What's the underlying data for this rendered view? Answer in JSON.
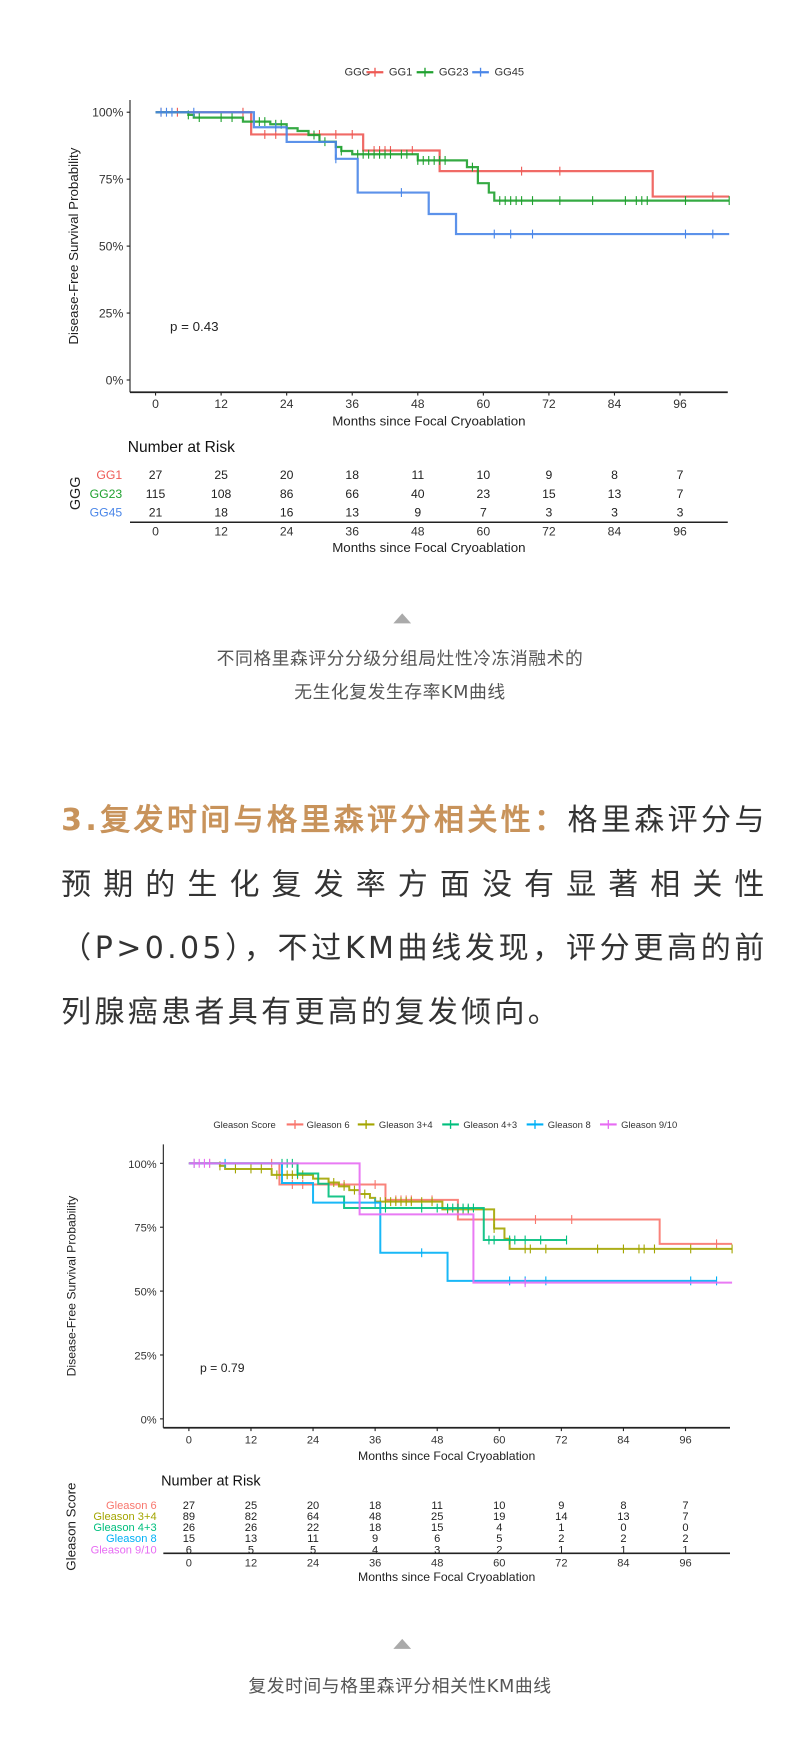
{
  "caption1": [
    "不同格里森评分分级分组局灶性冷冻消融术的",
    "无生化复发生存率KM曲线"
  ],
  "paragraph": {
    "highlight": "3.复发时间与格里森评分相关性：",
    "text": "格里森评分与预期的生化复发率方面没有显著相关性（P>0.05），不过KM曲线发现，评分更高的前列腺癌患者具有更高的复发倾向。"
  },
  "caption2": "复发时间与格里森评分相关性KM曲线",
  "chart_data": [
    {
      "type": "line",
      "step": true,
      "legend_title": "GGG",
      "legend_position": "top",
      "ylabel": "Disease-Free Survival Probability",
      "xlabel": "Months since Focal Cryoablation",
      "yticks": [
        "0%",
        "25%",
        "50%",
        "75%",
        "100%"
      ],
      "ytick_values": [
        0,
        0.25,
        0.5,
        0.75,
        1
      ],
      "xticks": [
        0,
        12,
        24,
        36,
        48,
        60,
        72,
        84,
        96
      ],
      "xlim": [
        0,
        105
      ],
      "ylim": [
        0,
        1
      ],
      "grid": false,
      "annotation": "p = 0.43",
      "series": [
        {
          "name": "GG1",
          "color": "#ee5a55",
          "steps": [
            [
              0,
              1
            ],
            [
              17.5,
              0.917
            ],
            [
              38,
              0.857
            ],
            [
              52,
              0.78
            ],
            [
              91,
              0.685
            ]
          ],
          "censor": [
            1,
            4,
            16,
            20,
            22,
            30,
            33,
            36,
            40,
            41,
            42,
            43,
            47,
            67,
            74,
            102
          ],
          "end": 105
        },
        {
          "name": "GG23",
          "color": "#1fa12f",
          "steps": [
            [
              0,
              1
            ],
            [
              6,
              0.99
            ],
            [
              7,
              0.98
            ],
            [
              16,
              0.965
            ],
            [
              21,
              0.955
            ],
            [
              24,
              0.94
            ],
            [
              26,
              0.93
            ],
            [
              28,
              0.915
            ],
            [
              30,
              0.89
            ],
            [
              33,
              0.87
            ],
            [
              34,
              0.855
            ],
            [
              36,
              0.843
            ],
            [
              48,
              0.82
            ],
            [
              57,
              0.795
            ],
            [
              59,
              0.735
            ],
            [
              61,
              0.7
            ],
            [
              62,
              0.67
            ]
          ],
          "censor": [
            6,
            8,
            12,
            14,
            19,
            20,
            22,
            23,
            29,
            31,
            34,
            37,
            38,
            39,
            40,
            41,
            42,
            43,
            45,
            46,
            48,
            49,
            50,
            51,
            52,
            53,
            58,
            63,
            64,
            65,
            66,
            67,
            69,
            74,
            80,
            86,
            88,
            89,
            90,
            97,
            105
          ],
          "end": 105
        },
        {
          "name": "GG45",
          "color": "#4a86e8",
          "steps": [
            [
              0,
              1
            ],
            [
              18,
              0.944
            ],
            [
              24,
              0.889
            ],
            [
              33,
              0.826
            ],
            [
              37,
              0.7
            ],
            [
              50,
              0.62
            ],
            [
              55,
              0.545
            ]
          ],
          "censor": [
            1,
            2,
            3,
            7,
            22,
            33,
            45,
            62,
            65,
            69,
            97,
            102
          ],
          "end": 105
        }
      ],
      "risk_table": {
        "title": "Number at Risk",
        "ylabel": "GGG",
        "xlabel": "Months since Focal Cryoablation",
        "rows": [
          {
            "label": "GG1",
            "color": "#ee5a55",
            "values": [
              27,
              25,
              20,
              18,
              11,
              10,
              9,
              8,
              7
            ]
          },
          {
            "label": "GG23",
            "color": "#1fa12f",
            "values": [
              115,
              108,
              86,
              66,
              40,
              23,
              15,
              13,
              7
            ]
          },
          {
            "label": "GG45",
            "color": "#4a86e8",
            "values": [
              21,
              18,
              16,
              13,
              9,
              7,
              3,
              3,
              3
            ]
          }
        ]
      }
    },
    {
      "type": "line",
      "step": true,
      "legend_title": "Gleason Score",
      "legend_position": "top",
      "ylabel": "Disease-Free Survival Probability",
      "xlabel": "Months since Focal Cryoablation",
      "yticks": [
        "0%",
        "25%",
        "50%",
        "75%",
        "100%"
      ],
      "ytick_values": [
        0,
        0.25,
        0.5,
        0.75,
        1
      ],
      "xticks": [
        0,
        12,
        24,
        36,
        48,
        60,
        72,
        84,
        96
      ],
      "xlim": [
        0,
        105
      ],
      "ylim": [
        0,
        1
      ],
      "grid": false,
      "annotation": "p = 0.79",
      "series": [
        {
          "name": "Gleason 6",
          "color": "#f8766d",
          "steps": [
            [
              0,
              1
            ],
            [
              17.5,
              0.917
            ],
            [
              38,
              0.857
            ],
            [
              52,
              0.78
            ],
            [
              91,
              0.685
            ]
          ],
          "censor": [
            1,
            4,
            16,
            20,
            22,
            30,
            33,
            36,
            40,
            41,
            42,
            43,
            47,
            67,
            74,
            102
          ],
          "end": 105
        },
        {
          "name": "Gleason 3+4",
          "color": "#a3a500",
          "steps": [
            [
              0,
              1
            ],
            [
              6,
              0.99
            ],
            [
              7,
              0.978
            ],
            [
              16,
              0.955
            ],
            [
              24,
              0.94
            ],
            [
              27,
              0.925
            ],
            [
              29,
              0.91
            ],
            [
              31,
              0.895
            ],
            [
              33,
              0.88
            ],
            [
              35,
              0.865
            ],
            [
              36,
              0.85
            ],
            [
              49,
              0.82
            ],
            [
              59,
              0.745
            ],
            [
              61,
              0.705
            ],
            [
              62,
              0.665
            ]
          ],
          "censor": [
            6,
            9,
            12,
            14,
            17,
            19,
            20,
            21,
            22,
            28,
            30,
            32,
            34,
            37,
            38,
            39,
            40,
            41,
            42,
            43,
            45,
            47,
            50,
            53,
            54,
            59,
            65,
            66,
            69,
            79,
            84,
            87,
            88,
            90,
            97,
            105
          ],
          "end": 105
        },
        {
          "name": "Gleason 4+3",
          "color": "#00bf7d",
          "steps": [
            [
              0,
              1
            ],
            [
              21,
              0.96
            ],
            [
              25,
              0.92
            ],
            [
              27,
              0.87
            ],
            [
              30,
              0.825
            ],
            [
              57,
              0.7
            ]
          ],
          "censor": [
            18,
            19,
            20,
            21,
            38,
            45,
            48,
            50,
            51,
            52,
            53,
            54,
            55,
            58,
            59,
            62,
            63,
            65,
            68,
            73
          ],
          "end": 73
        },
        {
          "name": "Gleason 8",
          "color": "#00b0f6",
          "steps": [
            [
              0,
              1
            ],
            [
              18,
              0.923
            ],
            [
              24,
              0.846
            ],
            [
              37,
              0.65
            ],
            [
              50,
              0.54
            ]
          ],
          "censor": [
            1,
            7,
            36,
            45,
            62,
            65,
            69,
            97,
            102
          ],
          "end": 102
        },
        {
          "name": "Gleason 9/10",
          "color": "#e76bf3",
          "steps": [
            [
              0,
              1
            ],
            [
              33,
              0.8
            ],
            [
              55,
              0.533
            ]
          ],
          "censor": [
            1,
            2,
            3,
            4,
            65
          ],
          "end": 105
        }
      ],
      "risk_table": {
        "title": "Number at Risk",
        "ylabel": "Gleason Score",
        "xlabel": "Months since Focal Cryoablation",
        "rows": [
          {
            "label": "Gleason 6",
            "color": "#f8766d",
            "values": [
              27,
              25,
              20,
              18,
              11,
              10,
              9,
              8,
              7
            ]
          },
          {
            "label": "Gleason 3+4",
            "color": "#a3a500",
            "values": [
              89,
              82,
              64,
              48,
              25,
              19,
              14,
              13,
              7
            ]
          },
          {
            "label": "Gleason 4+3",
            "color": "#00bf7d",
            "values": [
              26,
              26,
              22,
              18,
              15,
              4,
              1,
              0,
              0
            ]
          },
          {
            "label": "Gleason 8",
            "color": "#00b0f6",
            "values": [
              15,
              13,
              11,
              9,
              6,
              5,
              2,
              2,
              2
            ]
          },
          {
            "label": "Gleason 9/10",
            "color": "#e76bf3",
            "values": [
              6,
              5,
              5,
              4,
              3,
              2,
              1,
              1,
              1
            ]
          }
        ]
      }
    }
  ]
}
